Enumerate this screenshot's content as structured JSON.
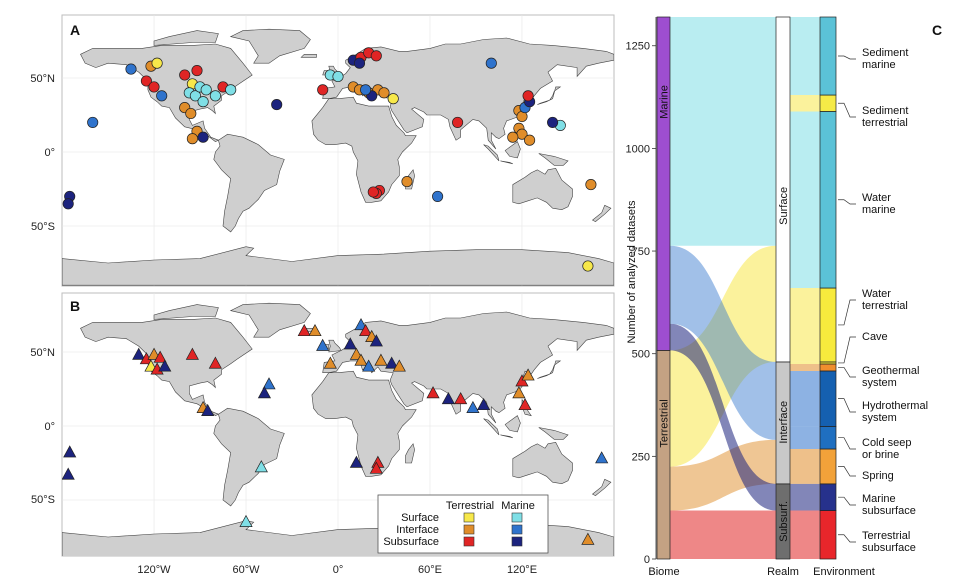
{
  "panels": {
    "a": "A",
    "b": "B",
    "c": "C"
  },
  "map_axes": {
    "lat_ticks_a": [
      "50°N",
      "0°",
      "50°S"
    ],
    "lat_ticks_b": [
      "50°N",
      "0°",
      "50°S"
    ],
    "lon_ticks": [
      "120°W",
      "60°W",
      "0°",
      "60°E",
      "120°E"
    ]
  },
  "legend": {
    "col_terrestrial": "Terrestrial",
    "col_marine": "Marine",
    "row_surface": "Surface",
    "row_interface": "Interface",
    "row_subsurface": "Subsurface"
  },
  "colors": {
    "terrestrial_surface": "#f7e84a",
    "terrestrial_interface": "#e08d2a",
    "terrestrial_subsurface": "#e02525",
    "marine_surface": "#7fdfe6",
    "marine_interface": "#2f73cc",
    "marine_subsurface": "#1c237e",
    "land": "#cfcfcf",
    "biome_marine": "#9e4ed0",
    "biome_terrestrial": "#c4a283"
  },
  "chart_data": {
    "type": "alluvial",
    "ylabel": "Number of analyzed datasets",
    "ylim": [
      0,
      1320
    ],
    "yticks": [
      "0",
      "250",
      "500",
      "750",
      "1000",
      "1250"
    ],
    "axes": [
      "Biome",
      "Realm",
      "Environment"
    ],
    "biome": [
      {
        "name": "Terrestrial",
        "value": 508
      },
      {
        "name": "Marine",
        "value": 812
      }
    ],
    "realm": [
      {
        "name": "Subsurf.",
        "value": 183
      },
      {
        "name": "Interface",
        "value": 297
      },
      {
        "name": "Surface",
        "value": 840
      }
    ],
    "environment": [
      {
        "name": "Terrestrial subsurface",
        "value": 118
      },
      {
        "name": "Marine subsurface",
        "value": 65
      },
      {
        "name": "Spring",
        "value": 85
      },
      {
        "name": "Cold seep or brine",
        "value": 55
      },
      {
        "name": "Hydrothermal system",
        "value": 135
      },
      {
        "name": "Geothermal system",
        "value": 17
      },
      {
        "name": "Cave",
        "value": 5
      },
      {
        "name": "Water terrestrial",
        "value": 180
      },
      {
        "name": "Water marine",
        "value": 430
      },
      {
        "name": "Sediment terrestrial",
        "value": 40
      },
      {
        "name": "Sediment marine",
        "value": 190
      }
    ],
    "env_labels": [
      "Sediment\nmarine",
      "Sediment\nterrestrial",
      "Water\nmarine",
      "Water\nterrestrial",
      "Cave",
      "Geothermal\nsystem",
      "Hydrothermal\nsystem",
      "Cold seep\nor brine",
      "Spring",
      "Marine\nsubsurface",
      "Terrestrial\nsubsurface"
    ]
  },
  "sites_a": [
    {
      "lon": -135,
      "lat": 56,
      "c": "marine_interface"
    },
    {
      "lon": -122,
      "lat": 58,
      "c": "terrestrial_interface"
    },
    {
      "lon": -118,
      "lat": 60,
      "c": "terrestrial_surface"
    },
    {
      "lon": -125,
      "lat": 48,
      "c": "terrestrial_subsurface"
    },
    {
      "lon": -120,
      "lat": 44,
      "c": "terrestrial_subsurface"
    },
    {
      "lon": -115,
      "lat": 38,
      "c": "marine_interface"
    },
    {
      "lon": -100,
      "lat": 52,
      "c": "terrestrial_subsurface"
    },
    {
      "lon": -92,
      "lat": 55,
      "c": "terrestrial_subsurface"
    },
    {
      "lon": -95,
      "lat": 46,
      "c": "terrestrial_surface"
    },
    {
      "lon": -97,
      "lat": 40,
      "c": "marine_surface"
    },
    {
      "lon": -93,
      "lat": 38,
      "c": "marine_surface"
    },
    {
      "lon": -90,
      "lat": 44,
      "c": "marine_surface"
    },
    {
      "lon": -86,
      "lat": 42,
      "c": "marine_surface"
    },
    {
      "lon": -80,
      "lat": 38,
      "c": "marine_surface"
    },
    {
      "lon": -75,
      "lat": 44,
      "c": "terrestrial_subsurface"
    },
    {
      "lon": -70,
      "lat": 42,
      "c": "marine_surface"
    },
    {
      "lon": -88,
      "lat": 34,
      "c": "marine_surface"
    },
    {
      "lon": -100,
      "lat": 30,
      "c": "terrestrial_interface"
    },
    {
      "lon": -96,
      "lat": 26,
      "c": "terrestrial_interface"
    },
    {
      "lon": -92,
      "lat": 14,
      "c": "terrestrial_interface"
    },
    {
      "lon": -88,
      "lat": 10,
      "c": "marine_subsurface"
    },
    {
      "lon": -95,
      "lat": 9,
      "c": "terrestrial_interface"
    },
    {
      "lon": -160,
      "lat": 20,
      "c": "marine_interface"
    },
    {
      "lon": -40,
      "lat": 32,
      "c": "marine_subsurface"
    },
    {
      "lon": -175,
      "lat": -30,
      "c": "marine_subsurface"
    },
    {
      "lon": -176,
      "lat": -35,
      "c": "marine_subsurface"
    },
    {
      "lon": -10,
      "lat": 42,
      "c": "terrestrial_subsurface"
    },
    {
      "lon": -5,
      "lat": 52,
      "c": "marine_surface"
    },
    {
      "lon": 0,
      "lat": 51,
      "c": "marine_surface"
    },
    {
      "lon": 10,
      "lat": 62,
      "c": "marine_subsurface"
    },
    {
      "lon": 15,
      "lat": 64,
      "c": "terrestrial_subsurface"
    },
    {
      "lon": 20,
      "lat": 67,
      "c": "terrestrial_subsurface"
    },
    {
      "lon": 25,
      "lat": 65,
      "c": "terrestrial_subsurface"
    },
    {
      "lon": 14,
      "lat": 60,
      "c": "marine_subsurface"
    },
    {
      "lon": 10,
      "lat": 44,
      "c": "terrestrial_interface"
    },
    {
      "lon": 14,
      "lat": 42,
      "c": "terrestrial_interface"
    },
    {
      "lon": 20,
      "lat": 40,
      "c": "terrestrial_interface"
    },
    {
      "lon": 26,
      "lat": 42,
      "c": "terrestrial_interface"
    },
    {
      "lon": 30,
      "lat": 40,
      "c": "terrestrial_interface"
    },
    {
      "lon": 22,
      "lat": 38,
      "c": "marine_subsurface"
    },
    {
      "lon": 36,
      "lat": 36,
      "c": "terrestrial_surface"
    },
    {
      "lon": 18,
      "lat": 42,
      "c": "marine_interface"
    },
    {
      "lon": 78,
      "lat": 20,
      "c": "terrestrial_subsurface"
    },
    {
      "lon": 100,
      "lat": 60,
      "c": "marine_interface"
    },
    {
      "lon": 118,
      "lat": 28,
      "c": "terrestrial_interface"
    },
    {
      "lon": 120,
      "lat": 24,
      "c": "terrestrial_interface"
    },
    {
      "lon": 122,
      "lat": 30,
      "c": "marine_interface"
    },
    {
      "lon": 125,
      "lat": 34,
      "c": "marine_subsurface"
    },
    {
      "lon": 124,
      "lat": 38,
      "c": "terrestrial_subsurface"
    },
    {
      "lon": 145,
      "lat": 18,
      "c": "marine_surface"
    },
    {
      "lon": 140,
      "lat": 20,
      "c": "marine_subsurface"
    },
    {
      "lon": 118,
      "lat": 16,
      "c": "terrestrial_interface"
    },
    {
      "lon": 120,
      "lat": 12,
      "c": "terrestrial_interface"
    },
    {
      "lon": 114,
      "lat": 10,
      "c": "terrestrial_interface"
    },
    {
      "lon": 125,
      "lat": 8,
      "c": "terrestrial_interface"
    },
    {
      "lon": 45,
      "lat": -20,
      "c": "terrestrial_interface"
    },
    {
      "lon": 27,
      "lat": -26,
      "c": "terrestrial_subsurface"
    },
    {
      "lon": 25,
      "lat": -28,
      "c": "terrestrial_subsurface"
    },
    {
      "lon": 23,
      "lat": -27,
      "c": "terrestrial_subsurface"
    },
    {
      "lon": 65,
      "lat": -30,
      "c": "marine_interface"
    },
    {
      "lon": 165,
      "lat": -22,
      "c": "terrestrial_interface"
    },
    {
      "lon": 163,
      "lat": -77,
      "c": "terrestrial_surface"
    }
  ],
  "sites_b": [
    {
      "lon": -130,
      "lat": 48,
      "c": "marine_subsurface"
    },
    {
      "lon": -125,
      "lat": 45,
      "c": "terrestrial_subsurface"
    },
    {
      "lon": -120,
      "lat": 48,
      "c": "terrestrial_interface"
    },
    {
      "lon": -116,
      "lat": 46,
      "c": "terrestrial_subsurface"
    },
    {
      "lon": -122,
      "lat": 40,
      "c": "terrestrial_surface"
    },
    {
      "lon": -118,
      "lat": 38,
      "c": "terrestrial_subsurface"
    },
    {
      "lon": -113,
      "lat": 40,
      "c": "marine_subsurface"
    },
    {
      "lon": -95,
      "lat": 48,
      "c": "terrestrial_subsurface"
    },
    {
      "lon": -80,
      "lat": 42,
      "c": "terrestrial_subsurface"
    },
    {
      "lon": -88,
      "lat": 12,
      "c": "terrestrial_interface"
    },
    {
      "lon": -85,
      "lat": 10,
      "c": "marine_subsurface"
    },
    {
      "lon": -45,
      "lat": 28,
      "c": "marine_interface"
    },
    {
      "lon": -48,
      "lat": 22,
      "c": "marine_subsurface"
    },
    {
      "lon": -175,
      "lat": -18,
      "c": "marine_subsurface"
    },
    {
      "lon": -176,
      "lat": -33,
      "c": "marine_subsurface"
    },
    {
      "lon": -50,
      "lat": -28,
      "c": "marine_surface"
    },
    {
      "lon": -60,
      "lat": -65,
      "c": "marine_surface"
    },
    {
      "lon": -22,
      "lat": 64,
      "c": "terrestrial_subsurface"
    },
    {
      "lon": -15,
      "lat": 64,
      "c": "terrestrial_interface"
    },
    {
      "lon": -10,
      "lat": 54,
      "c": "marine_interface"
    },
    {
      "lon": -5,
      "lat": 42,
      "c": "terrestrial_interface"
    },
    {
      "lon": 8,
      "lat": 55,
      "c": "marine_subsurface"
    },
    {
      "lon": 15,
      "lat": 68,
      "c": "marine_interface"
    },
    {
      "lon": 18,
      "lat": 64,
      "c": "terrestrial_subsurface"
    },
    {
      "lon": 22,
      "lat": 60,
      "c": "terrestrial_interface"
    },
    {
      "lon": 25,
      "lat": 57,
      "c": "marine_subsurface"
    },
    {
      "lon": 12,
      "lat": 48,
      "c": "terrestrial_interface"
    },
    {
      "lon": 15,
      "lat": 44,
      "c": "terrestrial_interface"
    },
    {
      "lon": 20,
      "lat": 40,
      "c": "marine_interface"
    },
    {
      "lon": 28,
      "lat": 44,
      "c": "terrestrial_interface"
    },
    {
      "lon": 35,
      "lat": 42,
      "c": "marine_subsurface"
    },
    {
      "lon": 40,
      "lat": 40,
      "c": "terrestrial_interface"
    },
    {
      "lon": 62,
      "lat": 22,
      "c": "terrestrial_subsurface"
    },
    {
      "lon": 72,
      "lat": 18,
      "c": "marine_subsurface"
    },
    {
      "lon": 80,
      "lat": 18,
      "c": "terrestrial_subsurface"
    },
    {
      "lon": 88,
      "lat": 12,
      "c": "marine_interface"
    },
    {
      "lon": 95,
      "lat": 14,
      "c": "marine_subsurface"
    },
    {
      "lon": 120,
      "lat": 30,
      "c": "terrestrial_subsurface"
    },
    {
      "lon": 124,
      "lat": 34,
      "c": "terrestrial_interface"
    },
    {
      "lon": 118,
      "lat": 22,
      "c": "terrestrial_interface"
    },
    {
      "lon": 122,
      "lat": 14,
      "c": "terrestrial_subsurface"
    },
    {
      "lon": 12,
      "lat": -25,
      "c": "marine_subsurface"
    },
    {
      "lon": 26,
      "lat": -25,
      "c": "terrestrial_subsurface"
    },
    {
      "lon": 25,
      "lat": -29,
      "c": "terrestrial_subsurface"
    },
    {
      "lon": 172,
      "lat": -22,
      "c": "marine_interface"
    },
    {
      "lon": 163,
      "lat": -77,
      "c": "terrestrial_interface"
    }
  ]
}
